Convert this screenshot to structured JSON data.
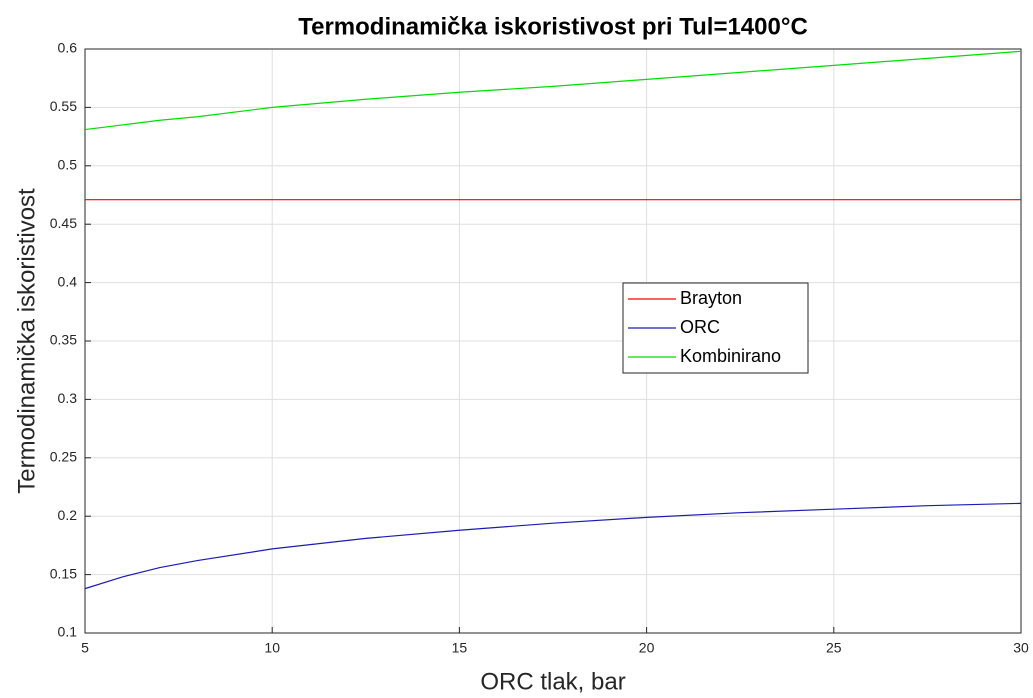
{
  "chart_data": {
    "type": "line",
    "title": "Termodinamička iskoristivost pri Tul=1400°C",
    "x_label": "ORC tlak, bar",
    "y_label": "Termodinamička iskoristivost",
    "x": [
      5,
      6,
      7,
      8,
      10,
      12.5,
      15,
      17.5,
      20,
      22.5,
      25,
      27.5,
      30
    ],
    "series": [
      {
        "name": "Brayton",
        "color": "#ff0000",
        "values": [
          0.471,
          0.471,
          0.471,
          0.471,
          0.471,
          0.471,
          0.471,
          0.471,
          0.471,
          0.471,
          0.471,
          0.471,
          0.471
        ]
      },
      {
        "name": "ORC",
        "color": "#1c1cb4",
        "values": [
          0.138,
          0.148,
          0.156,
          0.162,
          0.172,
          0.181,
          0.188,
          0.194,
          0.199,
          0.203,
          0.206,
          0.209,
          0.211
        ]
      },
      {
        "name": "Kombinirano",
        "color": "#00dd00",
        "values": [
          0.531,
          0.535,
          0.539,
          0.542,
          0.55,
          0.557,
          0.563,
          0.568,
          0.574,
          0.58,
          0.586,
          0.592,
          0.598
        ]
      }
    ],
    "xlim": [
      5,
      30
    ],
    "xticks": [
      5,
      10,
      15,
      20,
      25,
      30
    ],
    "ylim": [
      0.1,
      0.6
    ],
    "yticks": [
      0.1,
      0.15,
      0.2,
      0.25,
      0.3,
      0.35,
      0.4,
      0.45,
      0.5,
      0.55,
      0.6
    ],
    "grid": true,
    "legend_location": "center right"
  }
}
